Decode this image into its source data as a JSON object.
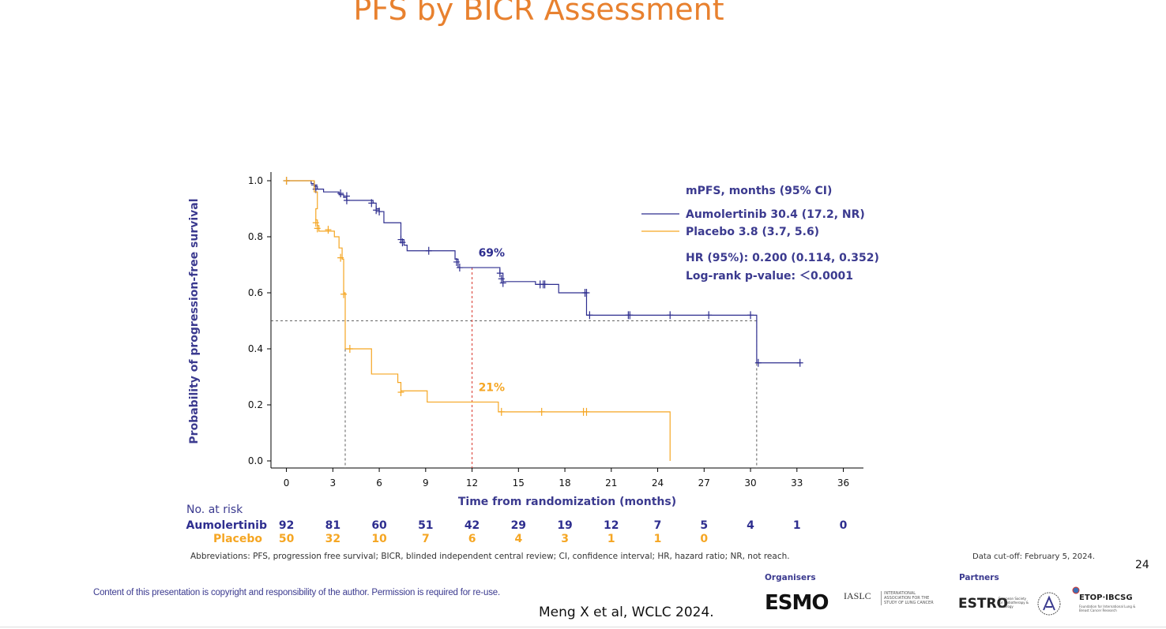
{
  "slide": {
    "title": "PFS by BICR Assessment",
    "page_number": "24",
    "abbreviations": "Abbreviations: PFS, progression free survival; BICR, blinded independent central review; CI, confidence interval; HR, hazard ratio; NR, not reach.",
    "data_cutoff": "Data cut-off: February 5, 2024.",
    "copyright": "Content of this presentation is copyright and responsibility of the author. Permission is required for re-use.",
    "citation": "Meng X et al, WCLC 2024.",
    "organisers_label": "Organisers",
    "partners_label": "Partners",
    "logos": {
      "esmo": "ESMO",
      "iaslc": "IASLC",
      "iaslc_sub": "INTERNATIONAL ASSOCIATION FOR THE STUDY OF LUNG CANCER",
      "estro": "ESTRO",
      "estro_sub": "European Society for Radiotherapy & Oncology",
      "etop": "ETOP·IBCSG",
      "etop_sub": "Foundation for International Lung & Breast Cancer Research"
    }
  },
  "colors": {
    "aumolertinib": "#2E2E8F",
    "placebo": "#F5A623",
    "title": "#E8812F",
    "label": "#3B3A8F",
    "landmark": "#D9342B"
  },
  "chart_data": {
    "type": "line",
    "subtype": "kaplan-meier",
    "title": "PFS by BICR Assessment",
    "xlabel": "Time from randomization (months)",
    "ylabel": "Probability of progression-free survival",
    "xlim": [
      -1,
      37.3
    ],
    "ylim": [
      0,
      1.0
    ],
    "xticks": [
      0,
      3,
      6,
      9,
      12,
      15,
      18,
      21,
      24,
      27,
      30,
      33,
      36
    ],
    "yticks": [
      0.0,
      0.2,
      0.4,
      0.6,
      0.8,
      1.0
    ],
    "ytick_labels": [
      "0.0",
      "0.2",
      "0.4",
      "0.6",
      "0.8",
      "1.0"
    ],
    "series": [
      {
        "name": "Aumolertinib",
        "color": "#2E2E8F",
        "steps": [
          [
            0,
            1.0
          ],
          [
            1.6,
            1.0
          ],
          [
            1.6,
            0.99
          ],
          [
            1.8,
            0.98
          ],
          [
            2.0,
            0.97
          ],
          [
            2.4,
            0.96
          ],
          [
            3.4,
            0.95
          ],
          [
            3.7,
            0.94
          ],
          [
            3.9,
            0.93
          ],
          [
            5.6,
            0.92
          ],
          [
            5.8,
            0.9
          ],
          [
            6.0,
            0.89
          ],
          [
            6.3,
            0.85
          ],
          [
            7.4,
            0.79
          ],
          [
            7.6,
            0.77
          ],
          [
            7.8,
            0.75
          ],
          [
            10.9,
            0.72
          ],
          [
            11.1,
            0.69
          ],
          [
            13.8,
            0.67
          ],
          [
            14.0,
            0.64
          ],
          [
            16.1,
            0.63
          ],
          [
            17.6,
            0.6
          ],
          [
            19.4,
            0.52
          ],
          [
            30.4,
            0.52
          ],
          [
            30.4,
            0.35
          ],
          [
            33.2,
            0.35
          ]
        ],
        "censored": [
          [
            0,
            1.0
          ],
          [
            1.8,
            0.985
          ],
          [
            1.9,
            0.97
          ],
          [
            3.5,
            0.955
          ],
          [
            3.9,
            0.945
          ],
          [
            3.9,
            0.93
          ],
          [
            5.5,
            0.92
          ],
          [
            5.8,
            0.895
          ],
          [
            6.0,
            0.89
          ],
          [
            7.4,
            0.79
          ],
          [
            7.5,
            0.78
          ],
          [
            9.2,
            0.75
          ],
          [
            11.0,
            0.71
          ],
          [
            11.2,
            0.69
          ],
          [
            13.8,
            0.67
          ],
          [
            13.9,
            0.65
          ],
          [
            14.0,
            0.635
          ],
          [
            16.4,
            0.63
          ],
          [
            16.6,
            0.63
          ],
          [
            16.7,
            0.63
          ],
          [
            19.3,
            0.6
          ],
          [
            19.4,
            0.6
          ],
          [
            19.6,
            0.52
          ],
          [
            22.1,
            0.52
          ],
          [
            22.2,
            0.52
          ],
          [
            24.8,
            0.52
          ],
          [
            27.3,
            0.52
          ],
          [
            30.0,
            0.52
          ],
          [
            30.5,
            0.35
          ],
          [
            33.2,
            0.35
          ]
        ]
      },
      {
        "name": "Placebo",
        "color": "#F5A623",
        "steps": [
          [
            0,
            1.0
          ],
          [
            1.8,
            1.0
          ],
          [
            1.8,
            0.96
          ],
          [
            2.0,
            0.9
          ],
          [
            1.9,
            0.86
          ],
          [
            2.0,
            0.84
          ],
          [
            2.1,
            0.82
          ],
          [
            3.0,
            0.82
          ],
          [
            3.1,
            0.8
          ],
          [
            3.4,
            0.76
          ],
          [
            3.6,
            0.72
          ],
          [
            3.7,
            0.6
          ],
          [
            3.8,
            0.5
          ],
          [
            3.8,
            0.4
          ],
          [
            5.5,
            0.4
          ],
          [
            5.5,
            0.31
          ],
          [
            7.1,
            0.31
          ],
          [
            7.2,
            0.28
          ],
          [
            7.4,
            0.25
          ],
          [
            9.1,
            0.25
          ],
          [
            9.1,
            0.21
          ],
          [
            13.7,
            0.21
          ],
          [
            13.7,
            0.175
          ],
          [
            24.8,
            0.175
          ],
          [
            24.8,
            0.0
          ]
        ],
        "censored": [
          [
            0,
            1.0
          ],
          [
            1.9,
            0.85
          ],
          [
            2.0,
            0.83
          ],
          [
            2.7,
            0.825
          ],
          [
            3.5,
            0.725
          ],
          [
            3.7,
            0.595
          ],
          [
            4.1,
            0.4
          ],
          [
            7.4,
            0.245
          ],
          [
            13.9,
            0.175
          ],
          [
            16.5,
            0.175
          ],
          [
            19.2,
            0.175
          ],
          [
            19.4,
            0.175
          ]
        ]
      }
    ],
    "median_lines": [
      {
        "series": "Placebo",
        "x": 3.8,
        "y": 0.5
      },
      {
        "series": "Aumolertinib",
        "x": 30.4,
        "y": 0.5
      }
    ],
    "landmark": {
      "x": 12,
      "labels": [
        {
          "text": "69%",
          "y": 0.69,
          "series": "Aumolertinib"
        },
        {
          "text": "21%",
          "y": 0.21,
          "series": "Placebo"
        }
      ]
    },
    "legend": {
      "header": "mPFS, months (95% CI)",
      "entries": [
        {
          "label": "Aumolertinib 30.4 (17.2, NR)",
          "color": "#2E2E8F"
        },
        {
          "label": "Placebo 3.8 (3.7, 5.6)",
          "color": "#F5A623"
        }
      ],
      "hr": "HR (95%): 0.200 (0.114, 0.352)",
      "logrank": "Log-rank p-value: ＜0.0001",
      "position": "top-right"
    },
    "risk_table": {
      "title": "No. at risk",
      "times": [
        0,
        3,
        6,
        9,
        12,
        15,
        18,
        21,
        24,
        27,
        30,
        33,
        36
      ],
      "rows": [
        {
          "label": "Aumolertinib",
          "color": "#2E2E8F",
          "values": [
            "92",
            "81",
            "60",
            "51",
            "42",
            "29",
            "19",
            "12",
            "7",
            "5",
            "4",
            "1",
            "0"
          ]
        },
        {
          "label": "Placebo",
          "color": "#F5A623",
          "values": [
            "50",
            "32",
            "10",
            "7",
            "6",
            "4",
            "3",
            "1",
            "1",
            "0"
          ]
        }
      ]
    }
  }
}
